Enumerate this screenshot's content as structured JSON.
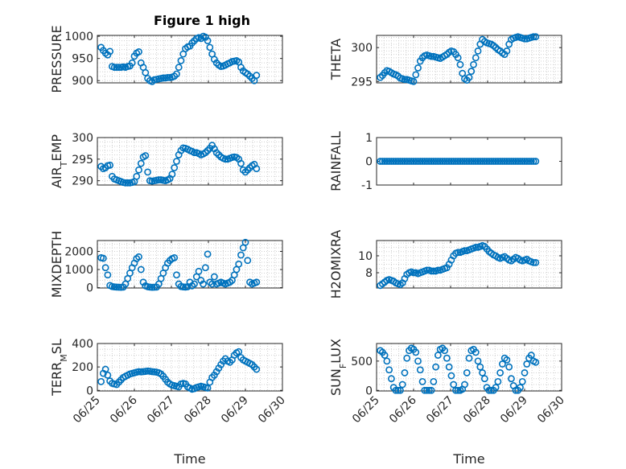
{
  "figure": {
    "title": "Figure 1 high"
  },
  "chart_data": [
    {
      "type": "scatter",
      "ylabel": "PRESSURE",
      "xlabel": "",
      "title": "Figure 1 high",
      "xlim": [
        0,
        5
      ],
      "ylim": [
        895,
        1002
      ],
      "yticks": [
        900,
        950,
        1000
      ],
      "ytick_labels": [
        "900",
        "950",
        "1000"
      ],
      "xticks": [],
      "xtick_labels": [],
      "grid": true,
      "minor_grid": true,
      "x": [
        0.1,
        0.16,
        0.22,
        0.28,
        0.34,
        0.4,
        0.46,
        0.52,
        0.58,
        0.64,
        0.7,
        0.76,
        0.82,
        0.88,
        0.94,
        1.0,
        1.06,
        1.12,
        1.18,
        1.24,
        1.3,
        1.36,
        1.42,
        1.48,
        1.54,
        1.6,
        1.66,
        1.72,
        1.78,
        1.84,
        1.9,
        1.96,
        2.02,
        2.08,
        2.14,
        2.2,
        2.26,
        2.32,
        2.38,
        2.44,
        2.5,
        2.56,
        2.62,
        2.68,
        2.74,
        2.8,
        2.86,
        2.92,
        2.98,
        3.04,
        3.1,
        3.16,
        3.22,
        3.28,
        3.34,
        3.4,
        3.46,
        3.52,
        3.58,
        3.64,
        3.7,
        3.76,
        3.82,
        3.88,
        3.94,
        4.0,
        4.06,
        4.12,
        4.18,
        4.24,
        4.3
      ],
      "y": [
        975,
        968,
        962,
        958,
        966,
        932,
        930,
        930,
        930,
        930,
        931,
        930,
        932,
        933,
        940,
        955,
        962,
        965,
        940,
        930,
        918,
        905,
        900,
        898,
        902,
        903,
        904,
        905,
        906,
        906,
        907,
        907,
        908,
        910,
        915,
        930,
        945,
        960,
        972,
        976,
        978,
        985,
        990,
        995,
        997,
        995,
        1000,
        998,
        990,
        975,
        960,
        948,
        940,
        935,
        932,
        933,
        935,
        938,
        940,
        943,
        944,
        945,
        942,
        930,
        922,
        918,
        915,
        910,
        905,
        900,
        912
      ]
    },
    {
      "type": "scatter",
      "ylabel": "THETA",
      "xlabel": "",
      "xlim": [
        0,
        5
      ],
      "ylim": [
        294.8,
        301.8
      ],
      "yticks": [
        295,
        300
      ],
      "ytick_labels": [
        "295",
        "300"
      ],
      "xticks": [],
      "xtick_labels": [],
      "grid": true,
      "minor_grid": true,
      "x": [
        0.1,
        0.16,
        0.22,
        0.28,
        0.34,
        0.4,
        0.46,
        0.52,
        0.58,
        0.64,
        0.7,
        0.76,
        0.82,
        0.88,
        0.94,
        1.0,
        1.06,
        1.12,
        1.18,
        1.24,
        1.3,
        1.36,
        1.42,
        1.48,
        1.54,
        1.6,
        1.66,
        1.72,
        1.78,
        1.84,
        1.9,
        1.96,
        2.02,
        2.08,
        2.14,
        2.2,
        2.26,
        2.32,
        2.38,
        2.44,
        2.5,
        2.56,
        2.62,
        2.68,
        2.74,
        2.8,
        2.86,
        2.92,
        2.98,
        3.04,
        3.1,
        3.16,
        3.22,
        3.28,
        3.34,
        3.4,
        3.46,
        3.52,
        3.58,
        3.64,
        3.7,
        3.76,
        3.82,
        3.88,
        3.94,
        4.0,
        4.06,
        4.12,
        4.18,
        4.24,
        4.3
      ],
      "y": [
        295.6,
        295.9,
        296.3,
        296.6,
        296.5,
        296.3,
        296.1,
        296.0,
        295.8,
        295.5,
        295.4,
        295.3,
        295.3,
        295.2,
        295.1,
        295.0,
        296.0,
        297.0,
        298.0,
        298.5,
        298.8,
        298.9,
        298.8,
        298.7,
        298.7,
        298.6,
        298.5,
        298.4,
        298.6,
        298.8,
        299.0,
        299.3,
        299.5,
        299.4,
        299.0,
        298.5,
        297.5,
        296.2,
        295.4,
        295.2,
        295.6,
        296.5,
        297.5,
        298.5,
        299.5,
        300.5,
        301.2,
        300.9,
        300.7,
        300.6,
        300.5,
        300.3,
        300.0,
        299.7,
        299.5,
        299.2,
        299.0,
        299.5,
        300.5,
        301.2,
        301.4,
        301.5,
        301.6,
        301.5,
        301.4,
        301.3,
        301.3,
        301.4,
        301.5,
        301.6,
        301.6
      ]
    },
    {
      "type": "scatter",
      "ylabel": "AIR_TEMP",
      "xlabel": "",
      "xlim": [
        0,
        5
      ],
      "ylim": [
        289,
        300
      ],
      "yticks": [
        290,
        295,
        300
      ],
      "ytick_labels": [
        "290",
        "295",
        "300"
      ],
      "xticks": [],
      "xtick_labels": [],
      "grid": true,
      "minor_grid": true,
      "x": [
        0.1,
        0.16,
        0.22,
        0.28,
        0.34,
        0.4,
        0.46,
        0.52,
        0.58,
        0.64,
        0.7,
        0.76,
        0.82,
        0.88,
        0.94,
        1.0,
        1.06,
        1.12,
        1.18,
        1.24,
        1.3,
        1.36,
        1.42,
        1.48,
        1.54,
        1.6,
        1.66,
        1.72,
        1.78,
        1.84,
        1.9,
        1.96,
        2.02,
        2.08,
        2.14,
        2.2,
        2.26,
        2.32,
        2.38,
        2.44,
        2.5,
        2.56,
        2.62,
        2.68,
        2.74,
        2.8,
        2.86,
        2.92,
        2.98,
        3.04,
        3.1,
        3.16,
        3.22,
        3.28,
        3.34,
        3.4,
        3.46,
        3.52,
        3.58,
        3.64,
        3.7,
        3.76,
        3.82,
        3.88,
        3.94,
        4.0,
        4.06,
        4.12,
        4.18,
        4.24,
        4.3
      ],
      "y": [
        293.3,
        292.8,
        293.0,
        293.5,
        293.6,
        291.0,
        290.4,
        290.2,
        290.0,
        289.8,
        289.6,
        289.5,
        289.5,
        289.5,
        289.6,
        289.8,
        291.0,
        292.5,
        294.0,
        295.5,
        295.8,
        292.0,
        290.0,
        289.9,
        290.0,
        290.1,
        290.2,
        290.2,
        290.1,
        290.0,
        290.2,
        290.5,
        291.5,
        293.0,
        294.5,
        296.0,
        297.0,
        297.6,
        297.5,
        297.3,
        297.0,
        296.8,
        296.5,
        296.5,
        296.3,
        296.0,
        296.2,
        296.5,
        297.0,
        297.5,
        298.2,
        297.4,
        296.5,
        296.0,
        295.5,
        295.2,
        295.0,
        295.0,
        295.2,
        295.4,
        295.5,
        295.4,
        295.0,
        294.0,
        292.5,
        292.0,
        292.5,
        293.0,
        293.5,
        293.8,
        292.8
      ]
    },
    {
      "type": "scatter",
      "ylabel": "RAINFALL",
      "xlabel": "",
      "xlim": [
        0,
        5
      ],
      "ylim": [
        -1,
        1
      ],
      "yticks": [
        -1,
        0,
        1
      ],
      "ytick_labels": [
        "-1",
        "0",
        "1"
      ],
      "xticks": [],
      "xtick_labels": [],
      "grid": false,
      "minor_grid": false,
      "x": [
        0.1,
        0.16,
        0.22,
        0.28,
        0.34,
        0.4,
        0.46,
        0.52,
        0.58,
        0.64,
        0.7,
        0.76,
        0.82,
        0.88,
        0.94,
        1.0,
        1.06,
        1.12,
        1.18,
        1.24,
        1.3,
        1.36,
        1.42,
        1.48,
        1.54,
        1.6,
        1.66,
        1.72,
        1.78,
        1.84,
        1.9,
        1.96,
        2.02,
        2.08,
        2.14,
        2.2,
        2.26,
        2.32,
        2.38,
        2.44,
        2.5,
        2.56,
        2.62,
        2.68,
        2.74,
        2.8,
        2.86,
        2.92,
        2.98,
        3.04,
        3.1,
        3.16,
        3.22,
        3.28,
        3.34,
        3.4,
        3.46,
        3.52,
        3.58,
        3.64,
        3.7,
        3.76,
        3.82,
        3.88,
        3.94,
        4.0,
        4.06,
        4.12,
        4.18,
        4.24,
        4.3
      ],
      "y": [
        0,
        0,
        0,
        0,
        0,
        0,
        0,
        0,
        0,
        0,
        0,
        0,
        0,
        0,
        0,
        0,
        0,
        0,
        0,
        0,
        0,
        0,
        0,
        0,
        0,
        0,
        0,
        0,
        0,
        0,
        0,
        0,
        0,
        0,
        0,
        0,
        0,
        0,
        0,
        0,
        0,
        0,
        0,
        0,
        0,
        0,
        0,
        0,
        0,
        0,
        0,
        0,
        0,
        0,
        0,
        0,
        0,
        0,
        0,
        0,
        0,
        0,
        0,
        0,
        0,
        0,
        0,
        0,
        0,
        0,
        0
      ]
    },
    {
      "type": "scatter",
      "ylabel": "MIXDEPTH",
      "xlabel": "",
      "xlim": [
        0,
        5
      ],
      "ylim": [
        -20,
        2600
      ],
      "yticks": [
        0,
        1000,
        2000
      ],
      "ytick_labels": [
        "0",
        "1000",
        "2000"
      ],
      "xticks": [],
      "xtick_labels": [],
      "grid": true,
      "minor_grid": true,
      "x": [
        0.1,
        0.16,
        0.22,
        0.28,
        0.34,
        0.4,
        0.46,
        0.52,
        0.58,
        0.64,
        0.7,
        0.76,
        0.82,
        0.88,
        0.94,
        1.0,
        1.06,
        1.12,
        1.18,
        1.24,
        1.3,
        1.36,
        1.42,
        1.48,
        1.54,
        1.6,
        1.66,
        1.72,
        1.78,
        1.84,
        1.9,
        1.96,
        2.02,
        2.08,
        2.14,
        2.2,
        2.26,
        2.32,
        2.38,
        2.44,
        2.5,
        2.56,
        2.62,
        2.68,
        2.74,
        2.8,
        2.86,
        2.92,
        2.98,
        3.04,
        3.1,
        3.16,
        3.22,
        3.28,
        3.34,
        3.4,
        3.46,
        3.52,
        3.58,
        3.64,
        3.7,
        3.76,
        3.82,
        3.88,
        3.94,
        4.0,
        4.06,
        4.12,
        4.18,
        4.24,
        4.3
      ],
      "y": [
        1650,
        1620,
        1100,
        700,
        120,
        60,
        40,
        30,
        25,
        20,
        30,
        200,
        500,
        800,
        1100,
        1350,
        1600,
        1700,
        1000,
        300,
        100,
        50,
        30,
        20,
        25,
        30,
        200,
        500,
        800,
        1100,
        1350,
        1500,
        1600,
        1650,
        700,
        200,
        60,
        40,
        30,
        50,
        300,
        100,
        200,
        600,
        900,
        400,
        200,
        1100,
        1850,
        300,
        200,
        600,
        200,
        250,
        300,
        250,
        200,
        250,
        300,
        400,
        700,
        1000,
        1300,
        1800,
        2200,
        2500,
        1500,
        300,
        200,
        250,
        300
      ]
    },
    {
      "type": "scatter",
      "ylabel": "H2OMIXRA",
      "xlabel": "",
      "xlim": [
        0,
        5
      ],
      "ylim": [
        6.2,
        11.8
      ],
      "yticks": [
        8,
        10
      ],
      "ytick_labels": [
        "8",
        "10"
      ],
      "xticks": [],
      "xtick_labels": [],
      "grid": true,
      "minor_grid": true,
      "x": [
        0.1,
        0.16,
        0.22,
        0.28,
        0.34,
        0.4,
        0.46,
        0.52,
        0.58,
        0.64,
        0.7,
        0.76,
        0.82,
        0.88,
        0.94,
        1.0,
        1.06,
        1.12,
        1.18,
        1.24,
        1.3,
        1.36,
        1.42,
        1.48,
        1.54,
        1.6,
        1.66,
        1.72,
        1.78,
        1.84,
        1.9,
        1.96,
        2.02,
        2.08,
        2.14,
        2.2,
        2.26,
        2.32,
        2.38,
        2.44,
        2.5,
        2.56,
        2.62,
        2.68,
        2.74,
        2.8,
        2.86,
        2.92,
        2.98,
        3.04,
        3.1,
        3.16,
        3.22,
        3.28,
        3.34,
        3.4,
        3.46,
        3.52,
        3.58,
        3.64,
        3.7,
        3.76,
        3.82,
        3.88,
        3.94,
        4.0,
        4.06,
        4.12,
        4.18,
        4.24,
        4.3
      ],
      "y": [
        6.5,
        6.7,
        6.9,
        7.1,
        7.2,
        7.1,
        7.0,
        6.8,
        6.7,
        6.6,
        6.8,
        7.3,
        7.8,
        8.0,
        8.1,
        8.0,
        8.0,
        7.9,
        8.0,
        8.1,
        8.2,
        8.3,
        8.3,
        8.2,
        8.2,
        8.2,
        8.3,
        8.3,
        8.4,
        8.5,
        8.6,
        9.0,
        9.5,
        10.0,
        10.3,
        10.4,
        10.4,
        10.5,
        10.6,
        10.6,
        10.7,
        10.8,
        10.9,
        11.0,
        11.0,
        11.1,
        11.2,
        11.1,
        10.8,
        10.5,
        10.3,
        10.1,
        10.0,
        9.8,
        9.7,
        9.8,
        9.9,
        9.7,
        9.5,
        9.4,
        9.6,
        9.8,
        9.7,
        9.5,
        9.4,
        9.5,
        9.6,
        9.4,
        9.3,
        9.2,
        9.2
      ]
    },
    {
      "type": "scatter",
      "ylabel": "TERR_MSL",
      "xlabel": "Time",
      "xlim": [
        0,
        5
      ],
      "ylim": [
        -5,
        400
      ],
      "yticks": [
        0,
        200,
        400
      ],
      "ytick_labels": [
        "0",
        "200",
        "400"
      ],
      "xticks": [
        0,
        1,
        2,
        3,
        4,
        5
      ],
      "xtick_labels": [
        "06/25",
        "06/26",
        "06/27",
        "06/28",
        "06/29",
        "06/30"
      ],
      "grid": true,
      "minor_grid": true,
      "x": [
        0.1,
        0.16,
        0.22,
        0.28,
        0.34,
        0.4,
        0.46,
        0.52,
        0.58,
        0.64,
        0.7,
        0.76,
        0.82,
        0.88,
        0.94,
        1.0,
        1.06,
        1.12,
        1.18,
        1.24,
        1.3,
        1.36,
        1.42,
        1.48,
        1.54,
        1.6,
        1.66,
        1.72,
        1.78,
        1.84,
        1.9,
        1.96,
        2.02,
        2.08,
        2.14,
        2.2,
        2.26,
        2.32,
        2.38,
        2.44,
        2.5,
        2.56,
        2.62,
        2.68,
        2.74,
        2.8,
        2.86,
        2.92,
        2.98,
        3.04,
        3.1,
        3.16,
        3.22,
        3.28,
        3.34,
        3.4,
        3.46,
        3.52,
        3.58,
        3.64,
        3.7,
        3.76,
        3.82,
        3.88,
        3.94,
        4.0,
        4.06,
        4.12,
        4.18,
        4.24,
        4.3
      ],
      "y": [
        75,
        145,
        180,
        130,
        80,
        60,
        55,
        50,
        70,
        90,
        110,
        120,
        130,
        140,
        145,
        150,
        155,
        160,
        158,
        160,
        162,
        165,
        163,
        160,
        158,
        155,
        150,
        140,
        120,
        95,
        70,
        55,
        45,
        40,
        35,
        30,
        55,
        60,
        55,
        30,
        20,
        10,
        15,
        25,
        30,
        35,
        30,
        25,
        20,
        70,
        110,
        130,
        160,
        190,
        220,
        250,
        270,
        250,
        240,
        260,
        300,
        320,
        330,
        280,
        260,
        250,
        240,
        230,
        220,
        200,
        180
      ]
    },
    {
      "type": "scatter",
      "ylabel": "SUN_FLUX",
      "xlabel": "Time",
      "xlim": [
        0,
        5
      ],
      "ylim": [
        -10,
        800
      ],
      "yticks": [
        0,
        500
      ],
      "ytick_labels": [
        "0",
        "500"
      ],
      "xticks": [
        0,
        1,
        2,
        3,
        4,
        5
      ],
      "xtick_labels": [
        "06/25",
        "06/26",
        "06/27",
        "06/28",
        "06/29",
        "06/30"
      ],
      "grid": true,
      "minor_grid": true,
      "x": [
        0.1,
        0.16,
        0.22,
        0.28,
        0.34,
        0.4,
        0.46,
        0.52,
        0.58,
        0.64,
        0.7,
        0.76,
        0.82,
        0.88,
        0.94,
        1.0,
        1.06,
        1.12,
        1.18,
        1.24,
        1.3,
        1.36,
        1.42,
        1.48,
        1.54,
        1.6,
        1.66,
        1.72,
        1.78,
        1.84,
        1.9,
        1.96,
        2.02,
        2.08,
        2.14,
        2.2,
        2.26,
        2.32,
        2.38,
        2.44,
        2.5,
        2.56,
        2.62,
        2.68,
        2.74,
        2.8,
        2.86,
        2.92,
        2.98,
        3.04,
        3.1,
        3.16,
        3.22,
        3.28,
        3.34,
        3.4,
        3.46,
        3.52,
        3.58,
        3.64,
        3.7,
        3.76,
        3.82,
        3.88,
        3.94,
        4.0,
        4.06,
        4.12,
        4.18,
        4.24,
        4.3
      ],
      "y": [
        680,
        650,
        600,
        500,
        350,
        200,
        50,
        0,
        0,
        0,
        100,
        300,
        550,
        680,
        720,
        700,
        650,
        500,
        350,
        150,
        0,
        0,
        0,
        0,
        150,
        400,
        600,
        700,
        720,
        680,
        550,
        400,
        250,
        100,
        0,
        0,
        0,
        20,
        100,
        300,
        550,
        680,
        700,
        650,
        500,
        400,
        300,
        200,
        50,
        0,
        0,
        0,
        50,
        150,
        300,
        450,
        550,
        520,
        400,
        200,
        80,
        0,
        0,
        50,
        150,
        300,
        450,
        550,
        600,
        500,
        480
      ]
    }
  ]
}
